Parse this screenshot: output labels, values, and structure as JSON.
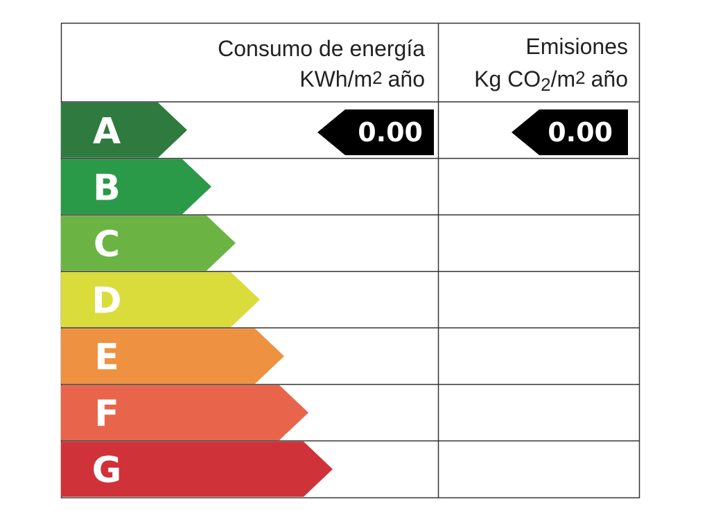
{
  "header": {
    "energy": {
      "title": "Consumo de energía",
      "unit": [
        "KWh/m",
        "2",
        "año"
      ]
    },
    "emissions": {
      "title": "Emisiones",
      "unit": [
        "Kg CO",
        "2",
        "/m",
        "2",
        "año"
      ]
    }
  },
  "ratings": [
    {
      "letter": "A",
      "color": "#2f7a3e"
    },
    {
      "letter": "B",
      "color": "#2b9a48"
    },
    {
      "letter": "C",
      "color": "#6bb444"
    },
    {
      "letter": "D",
      "color": "#d9dc3b"
    },
    {
      "letter": "E",
      "color": "#ee9141"
    },
    {
      "letter": "F",
      "color": "#e8654b"
    },
    {
      "letter": "G",
      "color": "#cf3238"
    }
  ],
  "energy_value": "0.00",
  "emissions_value": "0.00"
}
